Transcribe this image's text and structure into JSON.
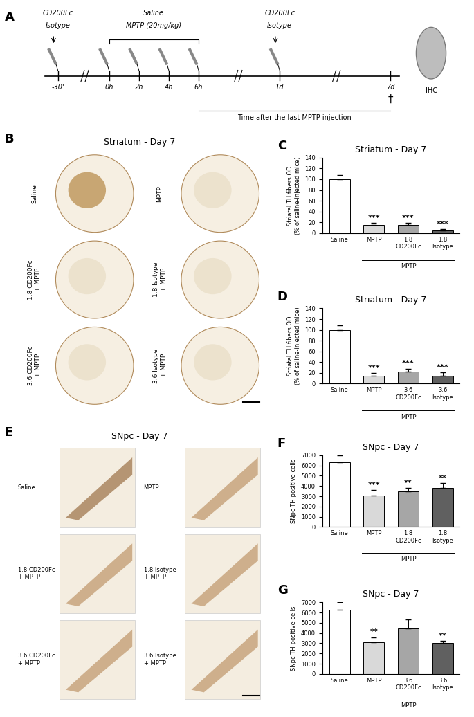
{
  "panel_letters": [
    "A",
    "B",
    "C",
    "D",
    "E",
    "F",
    "G"
  ],
  "timeline": {
    "pretreatment": [
      "CD200Fc",
      "Isotype"
    ],
    "treatment": [
      "Saline",
      "MPTP (20mg/kg)"
    ],
    "time_points": [
      "-30'",
      "0h",
      "2h",
      "4h",
      "6h",
      "1d",
      "7d"
    ],
    "end_mark": "†",
    "analysis": "IHC",
    "period_label": "Time after the last MPTP injection"
  },
  "striatum_images": {
    "title": "Striatum - Day 7",
    "labels": [
      "Saline",
      "MPTP",
      "1.8 CD200Fc\n+ MPTP",
      "1.8 Isotype\n+ MPTP",
      "3.6 CD200Fc\n+ MPTP",
      "3.6 Isotype\n+ MPTP"
    ]
  },
  "snpc_images": {
    "title": "SNpc - Day 7",
    "labels": [
      "Saline",
      "MPTP",
      "1.8 CD200Fc\n+ MPTP",
      "1.8 Isotype\n+ MPTP",
      "3.6 CD200Fc\n+ MPTP",
      "3.6 Isotype\n+ MPTP"
    ]
  },
  "chart_data": [
    {
      "type": "bar",
      "title": "Striatum - Day 7",
      "y_label": "Striatal TH fibers OD\n(% of saline-injected mice)",
      "categories": [
        "Saline",
        "MPTP",
        "1.8\nCD200Fc",
        "1.8\nIsotype"
      ],
      "values": [
        100,
        15,
        15,
        5
      ],
      "errors": [
        8,
        4,
        4,
        2
      ],
      "colors": [
        "#ffffff",
        "#d9d9d9",
        "#a6a6a6",
        "#606060"
      ],
      "stars": [
        null,
        "***",
        "***",
        "***"
      ],
      "group_label": "MPTP",
      "ylim": [
        0,
        140
      ],
      "yticks": [
        0,
        20,
        40,
        60,
        80,
        100,
        120,
        140
      ]
    },
    {
      "type": "bar",
      "title": "Striatum - Day 7",
      "y_label": "Striatal TH fibers OD\n(% of saline-injected mice)",
      "categories": [
        "Saline",
        "MPTP",
        "3.6\nCD200Fc",
        "3.6\nIsotype"
      ],
      "values": [
        100,
        15,
        22,
        15
      ],
      "errors": [
        8,
        4,
        6,
        6
      ],
      "colors": [
        "#ffffff",
        "#d9d9d9",
        "#a6a6a6",
        "#606060"
      ],
      "stars": [
        null,
        "***",
        "***",
        "***"
      ],
      "group_label": "MPTP",
      "ylim": [
        0,
        140
      ],
      "yticks": [
        0,
        20,
        40,
        60,
        80,
        100,
        120,
        140
      ]
    },
    {
      "type": "bar",
      "title": "SNpc - Day 7",
      "y_label": "SNpc TH-positive cells",
      "categories": [
        "Saline",
        "MPTP",
        "1.8\nCD200Fc",
        "1.8\nIsotype"
      ],
      "values": [
        6300,
        3100,
        3450,
        3800
      ],
      "errors": [
        700,
        500,
        350,
        500
      ],
      "colors": [
        "#ffffff",
        "#d9d9d9",
        "#a6a6a6",
        "#606060"
      ],
      "stars": [
        null,
        "***",
        "**",
        "**"
      ],
      "group_label": "MPTP",
      "ylim": [
        0,
        7000
      ],
      "yticks": [
        0,
        1000,
        2000,
        3000,
        4000,
        5000,
        6000,
        7000
      ]
    },
    {
      "type": "bar",
      "title": "SNpc - Day 7",
      "y_label": "SNpc TH-positive cells",
      "categories": [
        "Saline",
        "MPTP",
        "3.6\nCD200Fc",
        "3.6\nIsotype"
      ],
      "values": [
        6300,
        3100,
        4450,
        3000
      ],
      "errors": [
        700,
        500,
        900,
        250
      ],
      "colors": [
        "#ffffff",
        "#d9d9d9",
        "#a6a6a6",
        "#606060"
      ],
      "stars": [
        null,
        "**",
        null,
        "**"
      ],
      "group_label": "MPTP",
      "ylim": [
        0,
        7000
      ],
      "yticks": [
        0,
        1000,
        2000,
        3000,
        4000,
        5000,
        6000,
        7000
      ]
    }
  ]
}
